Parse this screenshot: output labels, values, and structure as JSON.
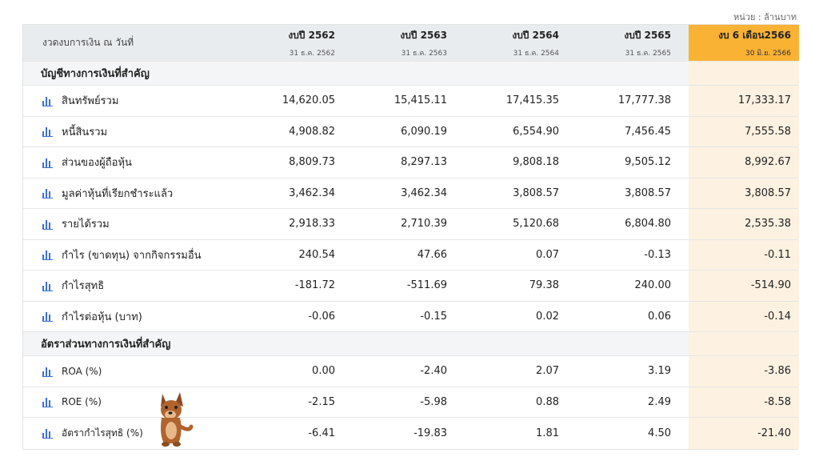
{
  "unit_label": "หน่วย : ล้านบาท",
  "header": {
    "label": "งวดงบการเงิน ณ วันที่",
    "columns": [
      {
        "year": "งบปี 2562",
        "date": "31 ธ.ค. 2562"
      },
      {
        "year": "งบปี 2563",
        "date": "31 ธ.ค. 2563"
      },
      {
        "year": "งบปี 2564",
        "date": "31 ธ.ค. 2564"
      },
      {
        "year": "งบปี 2565",
        "date": "31 ธ.ค. 2565"
      },
      {
        "year": "งบ 6 เดือน2566",
        "date": "30 มิ.ย. 2566"
      }
    ]
  },
  "sections": [
    {
      "title": "บัญชีทางการเงินที่สำคัญ",
      "rows": [
        {
          "label": "สินทรัพย์รวม",
          "values": [
            "14,620.05",
            "15,415.11",
            "17,415.35",
            "17,777.38",
            "17,333.17"
          ]
        },
        {
          "label": "หนี้สินรวม",
          "values": [
            "4,908.82",
            "6,090.19",
            "6,554.90",
            "7,456.45",
            "7,555.58"
          ]
        },
        {
          "label": "ส่วนของผู้ถือหุ้น",
          "values": [
            "8,809.73",
            "8,297.13",
            "9,808.18",
            "9,505.12",
            "8,992.67"
          ]
        },
        {
          "label": "มูลค่าหุ้นที่เรียกชำระแล้ว",
          "values": [
            "3,462.34",
            "3,462.34",
            "3,808.57",
            "3,808.57",
            "3,808.57"
          ]
        },
        {
          "label": "รายได้รวม",
          "values": [
            "2,918.33",
            "2,710.39",
            "5,120.68",
            "6,804.80",
            "2,535.38"
          ]
        },
        {
          "label": "กำไร (ขาดทุน) จากกิจกรรมอื่น",
          "values": [
            "240.54",
            "47.66",
            "0.07",
            "-0.13",
            "-0.11"
          ]
        },
        {
          "label": "กำไรสุทธิ",
          "values": [
            "-181.72",
            "-511.69",
            "79.38",
            "240.00",
            "-514.90"
          ]
        },
        {
          "label": "กำไรต่อหุ้น (บาท)",
          "values": [
            "-0.06",
            "-0.15",
            "0.02",
            "0.06",
            "-0.14"
          ]
        }
      ]
    },
    {
      "title": "อัตราส่วนทางการเงินที่สำคัญ",
      "rows": [
        {
          "label": "ROA (%)",
          "values": [
            "0.00",
            "-2.40",
            "2.07",
            "3.19",
            "-3.86"
          ]
        },
        {
          "label": "ROE (%)",
          "values": [
            "-2.15",
            "-5.98",
            "0.88",
            "2.49",
            "-8.58"
          ]
        },
        {
          "label": "อัตรากำไรสุทธิ (%)",
          "values": [
            "-6.41",
            "-19.83",
            "1.81",
            "4.50",
            "-21.40"
          ]
        }
      ]
    }
  ],
  "icons": {
    "row_icon": "bar-chart-icon",
    "mascot": "dog-mascot-icon"
  },
  "colors": {
    "highlight_header": "#f9b233",
    "highlight_column": "#fdf1e1",
    "icon": "#3b6fd8"
  }
}
